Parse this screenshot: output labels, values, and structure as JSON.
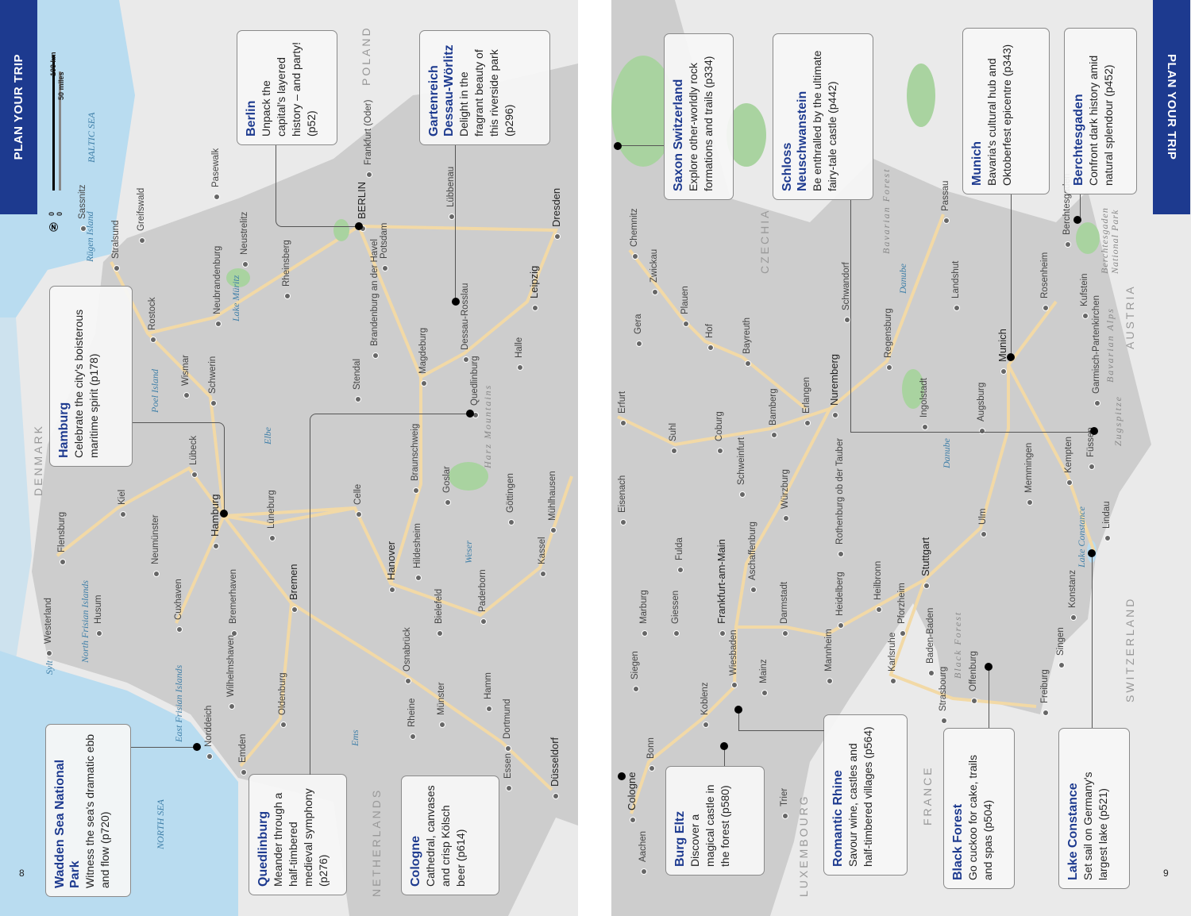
{
  "left_page": {
    "tab": "PLAN YOUR TRIP",
    "page_number": "8",
    "scale": {
      "zero_km": "0",
      "zero_mi": "0",
      "km": "100 km",
      "miles": "50 miles"
    },
    "callouts": [
      {
        "title": "Berlin",
        "text": "Unpack the capital's layered history – and party! (p52)"
      },
      {
        "title": "Gartenreich Dessau-Wörlitz",
        "text": "Delight in the fragrant beauty of this riverside park (p296)"
      },
      {
        "title": "Hamburg",
        "text": "Celebrate the city's boisterous maritime spirit (p178)"
      },
      {
        "title": "Wadden Sea National Park",
        "text": "Witness the sea's dramatic ebb and flow (p720)"
      },
      {
        "title": "Quedlinburg",
        "text": "Meander through a half-timbered medieval symphony (p276)"
      },
      {
        "title": "Cologne",
        "text": "Cathedral, canvases and crisp Kölsch beer (p614)"
      }
    ],
    "cities": [
      "Flensburg",
      "Husum",
      "Westerland",
      "Kiel",
      "Neumünster",
      "Lübeck",
      "Rostock",
      "Wismar",
      "Schwerin",
      "Stralsund",
      "Greifswald",
      "Sassnitz",
      "Neubrandenburg",
      "Neustrelitz",
      "Rheinsberg",
      "Pasewalk",
      "Frankfurt (Oder)",
      "BERLIN",
      "Potsdam",
      "Lübbenau",
      "Dresden",
      "Brandenburg an der Havel",
      "Magdeburg",
      "Stendal",
      "Dessau-Rosslau",
      "Leipzig",
      "Halle",
      "Quedlinburg",
      "Braunschweig",
      "Celle",
      "Lüneburg",
      "Hamburg",
      "Cuxhaven",
      "Bremerhaven",
      "Bremen",
      "Wilhelmshaven",
      "Oldenburg",
      "Emden",
      "Norddeich",
      "Hanover",
      "Hildesheim",
      "Goslar",
      "Göttingen",
      "Mühlhausen",
      "Kassel",
      "Paderborn",
      "Bielefeld",
      "Osnabrück",
      "Münster",
      "Hamm",
      "Dortmund",
      "Rheine",
      "Essen",
      "Düsseldorf"
    ],
    "countries": [
      "DENMARK",
      "POLAND",
      "NETHERLANDS"
    ],
    "water": [
      "BALTIC SEA",
      "NORTH SEA",
      "Elbe",
      "Weser",
      "Ems",
      "Lake Müritz",
      "Poel Island",
      "Rügen Island",
      "North Frisian Islands",
      "East Frisian Islands",
      "Sylt"
    ],
    "regions": [
      "Harz Mountains"
    ]
  },
  "right_page": {
    "tab": "PLAN YOUR TRIP",
    "page_number": "9",
    "callouts": [
      {
        "title": "Saxon Switzerland",
        "text": "Explore other-worldly rock formations and trails (p334)"
      },
      {
        "title": "Schloss Neuschwanstein",
        "text": "Be enthralled by the ultimate fairy-tale castle (p442)"
      },
      {
        "title": "Munich",
        "text": "Bavaria's cultural hub and Oktoberfest epicentre (p343)"
      },
      {
        "title": "Berchtesgaden",
        "text": "Confront dark history amid natural splendour (p452)"
      },
      {
        "title": "Burg Eltz",
        "text": "Discover a magical castle in the forest (p580)"
      },
      {
        "title": "Romantic Rhine",
        "text": "Savour wine, castles and half-timbered villages (p564)"
      },
      {
        "title": "Black Forest",
        "text": "Go cuckoo for cake, trails and spas (p504)"
      },
      {
        "title": "Lake Constance",
        "text": "Set sail on Germany's largest lake (p521)"
      }
    ],
    "cities": [
      "Chemnitz",
      "Zwickau",
      "Plauen",
      "Gera",
      "Hof",
      "Bayreuth",
      "Erfurt",
      "Suhl",
      "Coburg",
      "Bamberg",
      "Erlangen",
      "Nuremberg",
      "Schweinfurt",
      "Würzburg",
      "Eisenach",
      "Fulda",
      "Aschaffenburg",
      "Rothenburg ob der Tauber",
      "Regensburg",
      "Passau",
      "Landshut",
      "Ingolstadt",
      "Munich",
      "Augsburg",
      "Rosenheim",
      "Berchtesgaden",
      "Kufstein",
      "Garmisch-Partenkirchen",
      "Füssen",
      "Kempten",
      "Memmingen",
      "Ulm",
      "Stuttgart",
      "Heilbronn",
      "Heidelberg",
      "Mannheim",
      "Darmstadt",
      "Frankfurt-am-Main",
      "Marburg",
      "Giessen",
      "Siegen",
      "Wiesbaden",
      "Mainz",
      "Koblenz",
      "Bonn",
      "Cologne",
      "Aachen",
      "Trier",
      "Karlsruhe",
      "Pforzheim",
      "Baden-Baden",
      "Strasbourg",
      "Offenburg",
      "Freiburg",
      "Singen",
      "Konstanz",
      "Lindau",
      "Schwandorf"
    ],
    "countries": [
      "CZECHIA",
      "AUSTRIA",
      "SWITZERLAND",
      "FRANCE",
      "LUXEMBOURG"
    ],
    "water": [
      "Danube",
      "Danube",
      "Lake Constance"
    ],
    "regions": [
      "Bavarian Forest",
      "Black Forest",
      "Bavarian Alps",
      "Berchtesgaden National Park",
      "Zugspitze"
    ]
  },
  "colors": {
    "accent": "#1d3a8f",
    "sea": "#b9dcf0",
    "land": "#cdcdcd",
    "neighbour": "#eaeaea",
    "road": "#f2d9a6",
    "forest": "#a9d3a0"
  }
}
